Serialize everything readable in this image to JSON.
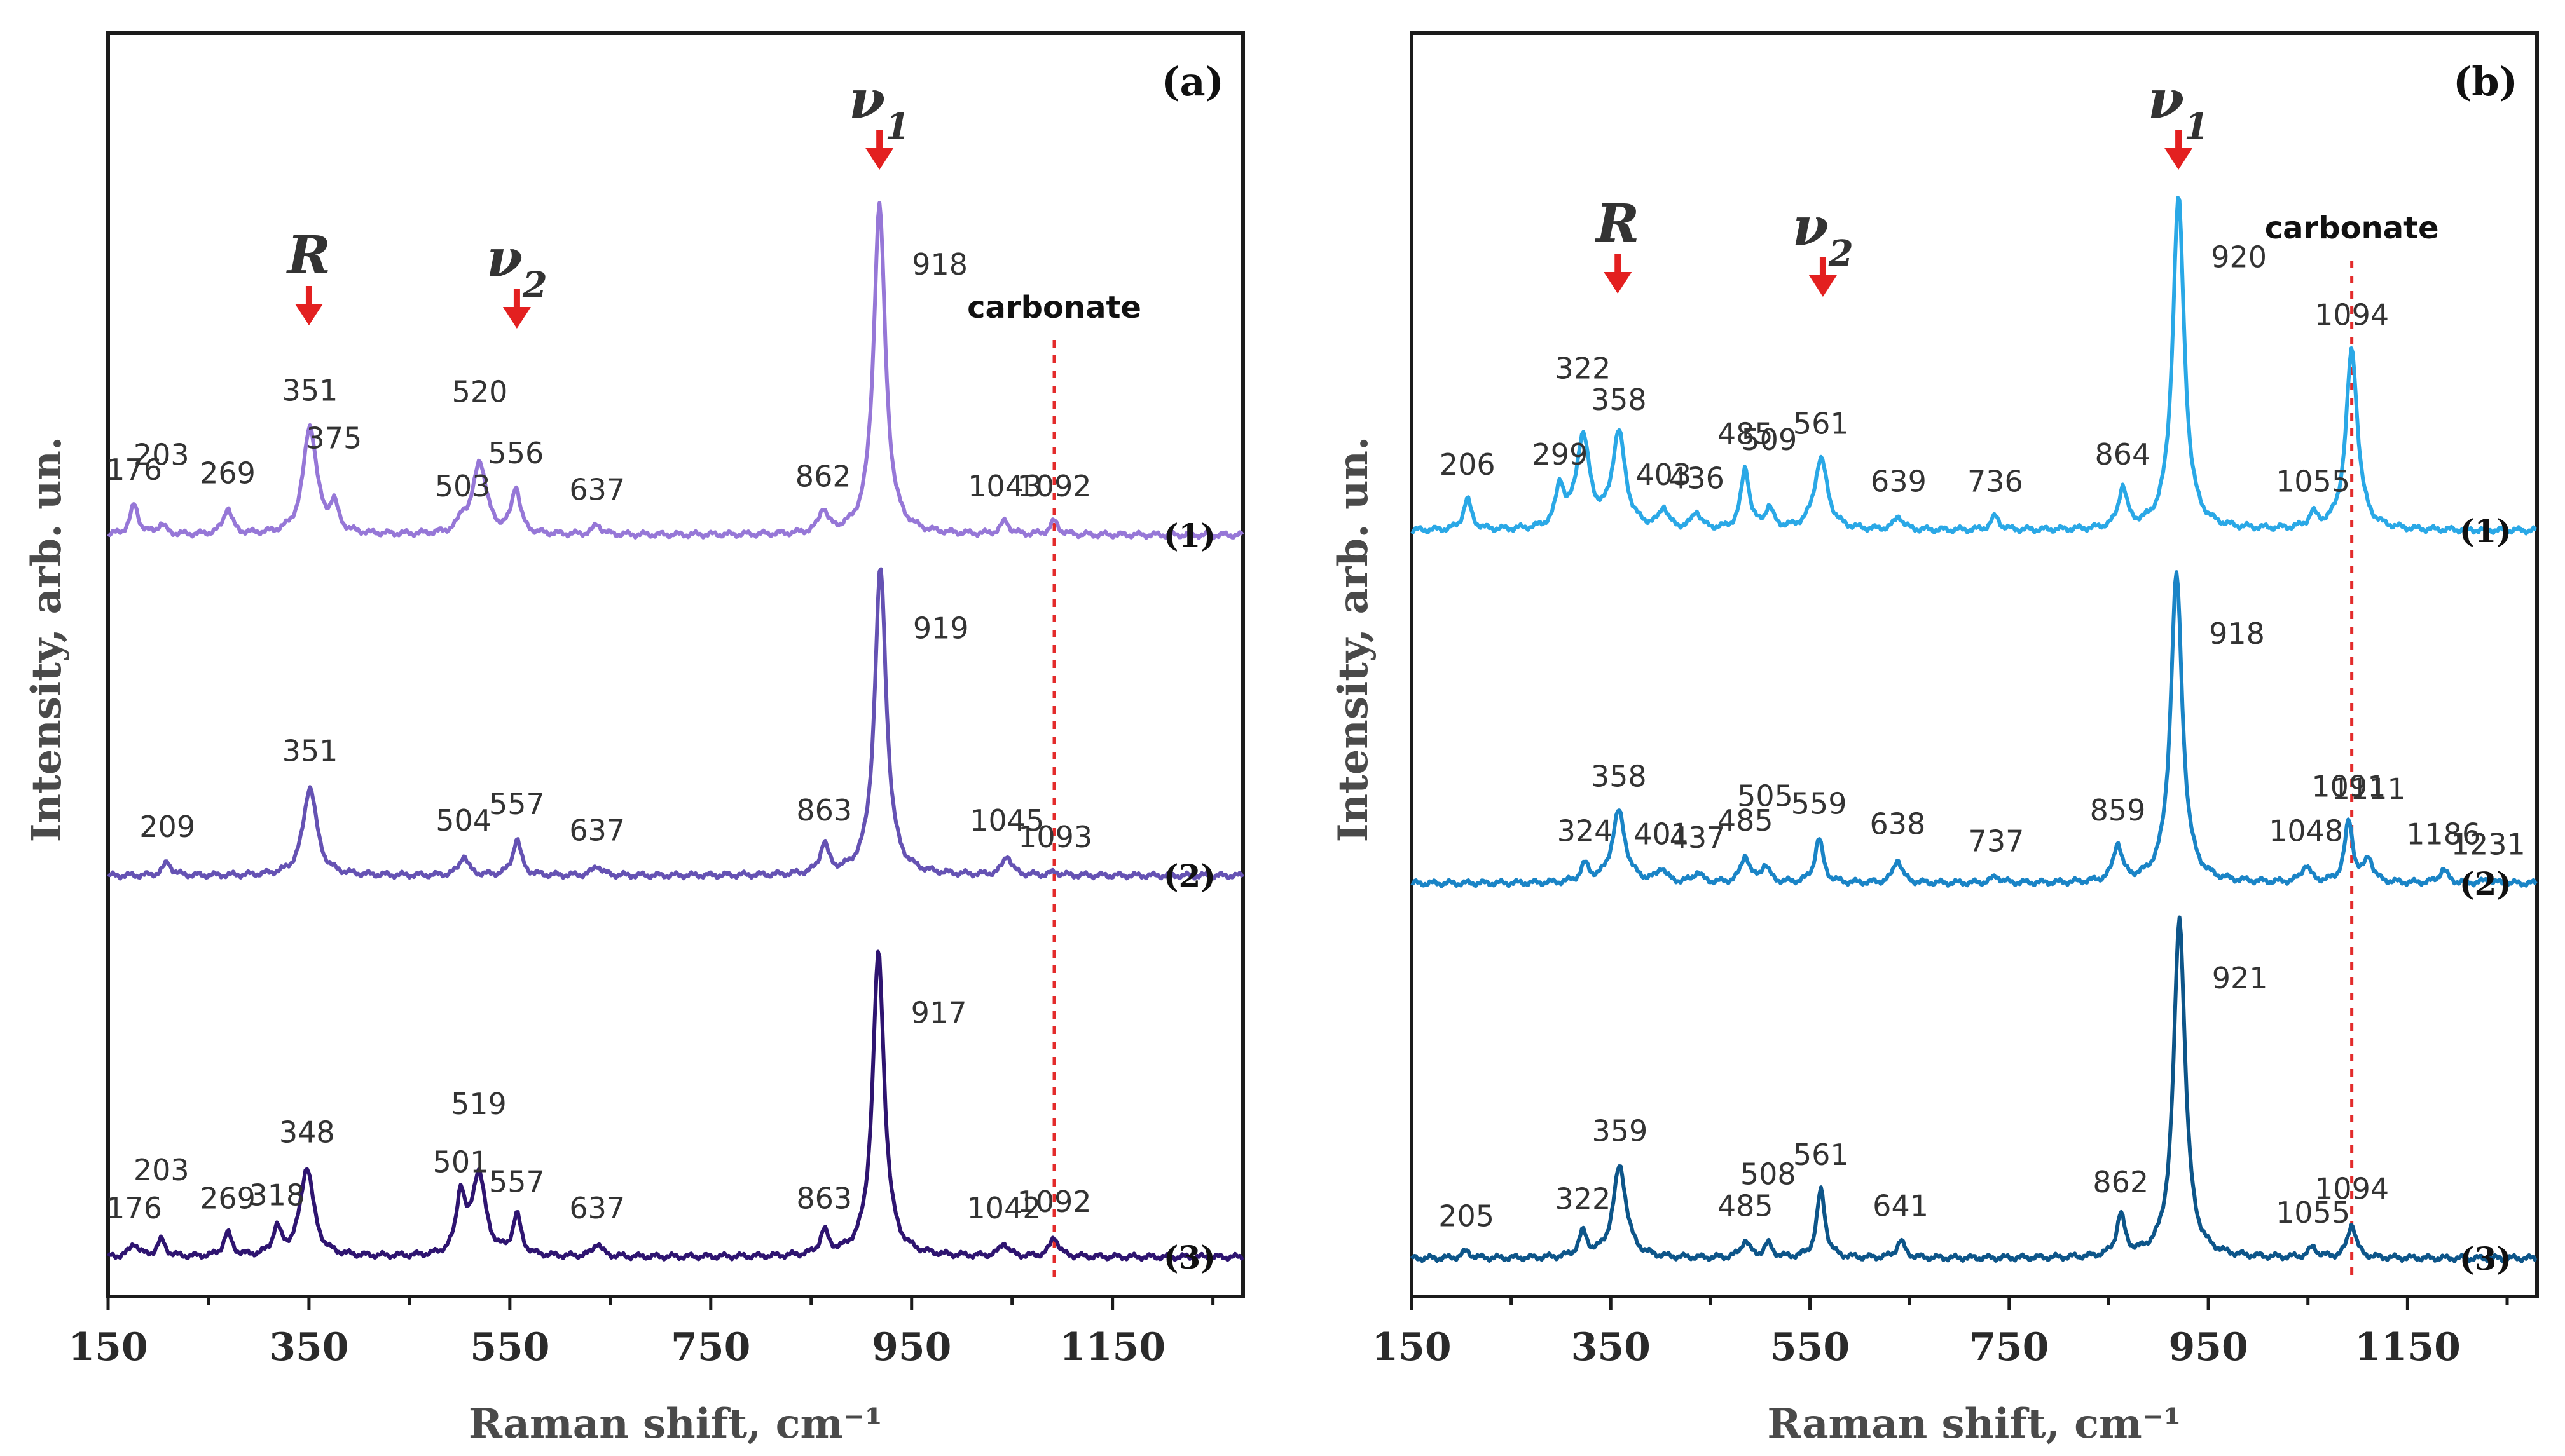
{
  "chart_data": [
    {
      "type": "line",
      "panel_label": "(a)",
      "xlabel": "Raman shift, cm⁻¹",
      "ylabel": "Intensity, arb. un.",
      "xlim": [
        150,
        1280
      ],
      "xticks": [
        "150",
        "350",
        "550",
        "750",
        "950",
        "1150"
      ],
      "annotations": {
        "R": "R",
        "nu2": "ν2",
        "nu1": "ν1",
        "carbonate": "carbonate"
      },
      "reference_line": 1092,
      "series": [
        {
          "name": "(1)",
          "color": "#9677d7",
          "peaks": [
            {
              "x": 176,
              "h": 0.09,
              "label": "176"
            },
            {
              "x": 203,
              "h": 0.03,
              "label": "203"
            },
            {
              "x": 269,
              "h": 0.08,
              "label": "269"
            },
            {
              "x": 351,
              "h": 0.33,
              "label": "351"
            },
            {
              "x": 375,
              "h": 0.08,
              "label": "375"
            },
            {
              "x": 503,
              "h": 0.04,
              "label": "503"
            },
            {
              "x": 520,
              "h": 0.22,
              "label": "520"
            },
            {
              "x": 556,
              "h": 0.14,
              "label": "556"
            },
            {
              "x": 637,
              "h": 0.03,
              "label": "637"
            },
            {
              "x": 862,
              "h": 0.07,
              "label": "862"
            },
            {
              "x": 918,
              "h": 1.0,
              "label": "918"
            },
            {
              "x": 1043,
              "h": 0.04,
              "label": "1043"
            },
            {
              "x": 1092,
              "h": 0.04,
              "label": "1092"
            }
          ]
        },
        {
          "name": "(2)",
          "color": "#6552b3",
          "peaks": [
            {
              "x": 209,
              "h": 0.04,
              "label": "209"
            },
            {
              "x": 351,
              "h": 0.27,
              "label": "351"
            },
            {
              "x": 504,
              "h": 0.06,
              "label": "504"
            },
            {
              "x": 557,
              "h": 0.11,
              "label": "557"
            },
            {
              "x": 637,
              "h": 0.03,
              "label": "637"
            },
            {
              "x": 863,
              "h": 0.09,
              "label": "863"
            },
            {
              "x": 919,
              "h": 0.93,
              "label": "919"
            },
            {
              "x": 1045,
              "h": 0.06,
              "label": "1045"
            },
            {
              "x": 1093,
              "h": 0.01,
              "label": "1093"
            }
          ]
        },
        {
          "name": "(3)",
          "color": "#2e1470",
          "peaks": [
            {
              "x": 176,
              "h": 0.04,
              "label": "176"
            },
            {
              "x": 203,
              "h": 0.05,
              "label": "203"
            },
            {
              "x": 269,
              "h": 0.07,
              "label": "269"
            },
            {
              "x": 318,
              "h": 0.08,
              "label": "318"
            },
            {
              "x": 348,
              "h": 0.27,
              "label": "348"
            },
            {
              "x": 501,
              "h": 0.18,
              "label": "501"
            },
            {
              "x": 519,
              "h": 0.25,
              "label": "519"
            },
            {
              "x": 557,
              "h": 0.12,
              "label": "557"
            },
            {
              "x": 637,
              "h": 0.04,
              "label": "637"
            },
            {
              "x": 863,
              "h": 0.07,
              "label": "863"
            },
            {
              "x": 917,
              "h": 0.92,
              "label": "917"
            },
            {
              "x": 1042,
              "h": 0.04,
              "label": "1042"
            },
            {
              "x": 1092,
              "h": 0.06,
              "label": "1092"
            }
          ]
        }
      ]
    },
    {
      "type": "line",
      "panel_label": "(b)",
      "xlabel": "Raman shift, cm⁻¹",
      "ylabel": "Intensity, arb. un.",
      "xlim": [
        150,
        1280
      ],
      "xticks": [
        "150",
        "350",
        "550",
        "750",
        "950",
        "1150"
      ],
      "annotations": {
        "R": "R",
        "nu2": "ν2",
        "nu1": "ν1",
        "carbonate": "carbonate"
      },
      "reference_line": 1094,
      "series": [
        {
          "name": "(1)",
          "color": "#2aa8e6",
          "peaks": [
            {
              "x": 206,
              "h": 0.09,
              "label": "206"
            },
            {
              "x": 299,
              "h": 0.12,
              "label": "299"
            },
            {
              "x": 322,
              "h": 0.27,
              "label": "322"
            },
            {
              "x": 358,
              "h": 0.28,
              "label": "358"
            },
            {
              "x": 403,
              "h": 0.06,
              "label": "403"
            },
            {
              "x": 436,
              "h": 0.05,
              "label": "436"
            },
            {
              "x": 485,
              "h": 0.18,
              "label": "485"
            },
            {
              "x": 509,
              "h": 0.06,
              "label": "509"
            },
            {
              "x": 561,
              "h": 0.21,
              "label": "561"
            },
            {
              "x": 639,
              "h": 0.04,
              "label": "639"
            },
            {
              "x": 736,
              "h": 0.04,
              "label": "736"
            },
            {
              "x": 864,
              "h": 0.12,
              "label": "864"
            },
            {
              "x": 920,
              "h": 0.98,
              "label": "920"
            },
            {
              "x": 1055,
              "h": 0.04,
              "label": "1055"
            },
            {
              "x": 1094,
              "h": 0.53,
              "label": "1094"
            }
          ]
        },
        {
          "name": "(2)",
          "color": "#1a84c6",
          "peaks": [
            {
              "x": 324,
              "h": 0.05,
              "label": "324"
            },
            {
              "x": 358,
              "h": 0.21,
              "label": "358"
            },
            {
              "x": 401,
              "h": 0.04,
              "label": "401"
            },
            {
              "x": 437,
              "h": 0.03,
              "label": "437"
            },
            {
              "x": 485,
              "h": 0.08,
              "label": "485"
            },
            {
              "x": 505,
              "h": 0.05,
              "label": "505"
            },
            {
              "x": 559,
              "h": 0.13,
              "label": "559"
            },
            {
              "x": 638,
              "h": 0.07,
              "label": "638"
            },
            {
              "x": 737,
              "h": 0.02,
              "label": "737"
            },
            {
              "x": 859,
              "h": 0.11,
              "label": "859"
            },
            {
              "x": 918,
              "h": 0.91,
              "label": "918"
            },
            {
              "x": 1048,
              "h": 0.05,
              "label": "1048"
            },
            {
              "x": 1091,
              "h": 0.18,
              "label": "1091"
            },
            {
              "x": 1111,
              "h": 0.07,
              "label": "1111"
            },
            {
              "x": 1186,
              "h": 0.04,
              "label": "1186"
            },
            {
              "x": 1231,
              "h": 0.01,
              "label": "1231"
            }
          ]
        },
        {
          "name": "(3)",
          "color": "#0d5589",
          "peaks": [
            {
              "x": 205,
              "h": 0.02,
              "label": "205"
            },
            {
              "x": 322,
              "h": 0.07,
              "label": "322"
            },
            {
              "x": 359,
              "h": 0.27,
              "label": "359"
            },
            {
              "x": 485,
              "h": 0.05,
              "label": "485"
            },
            {
              "x": 508,
              "h": 0.04,
              "label": "508"
            },
            {
              "x": 561,
              "h": 0.2,
              "label": "561"
            },
            {
              "x": 641,
              "h": 0.05,
              "label": "641"
            },
            {
              "x": 862,
              "h": 0.12,
              "label": "862"
            },
            {
              "x": 921,
              "h": 1.0,
              "label": "921"
            },
            {
              "x": 1055,
              "h": 0.03,
              "label": "1055"
            },
            {
              "x": 1094,
              "h": 0.1,
              "label": "1094"
            }
          ]
        }
      ]
    }
  ]
}
